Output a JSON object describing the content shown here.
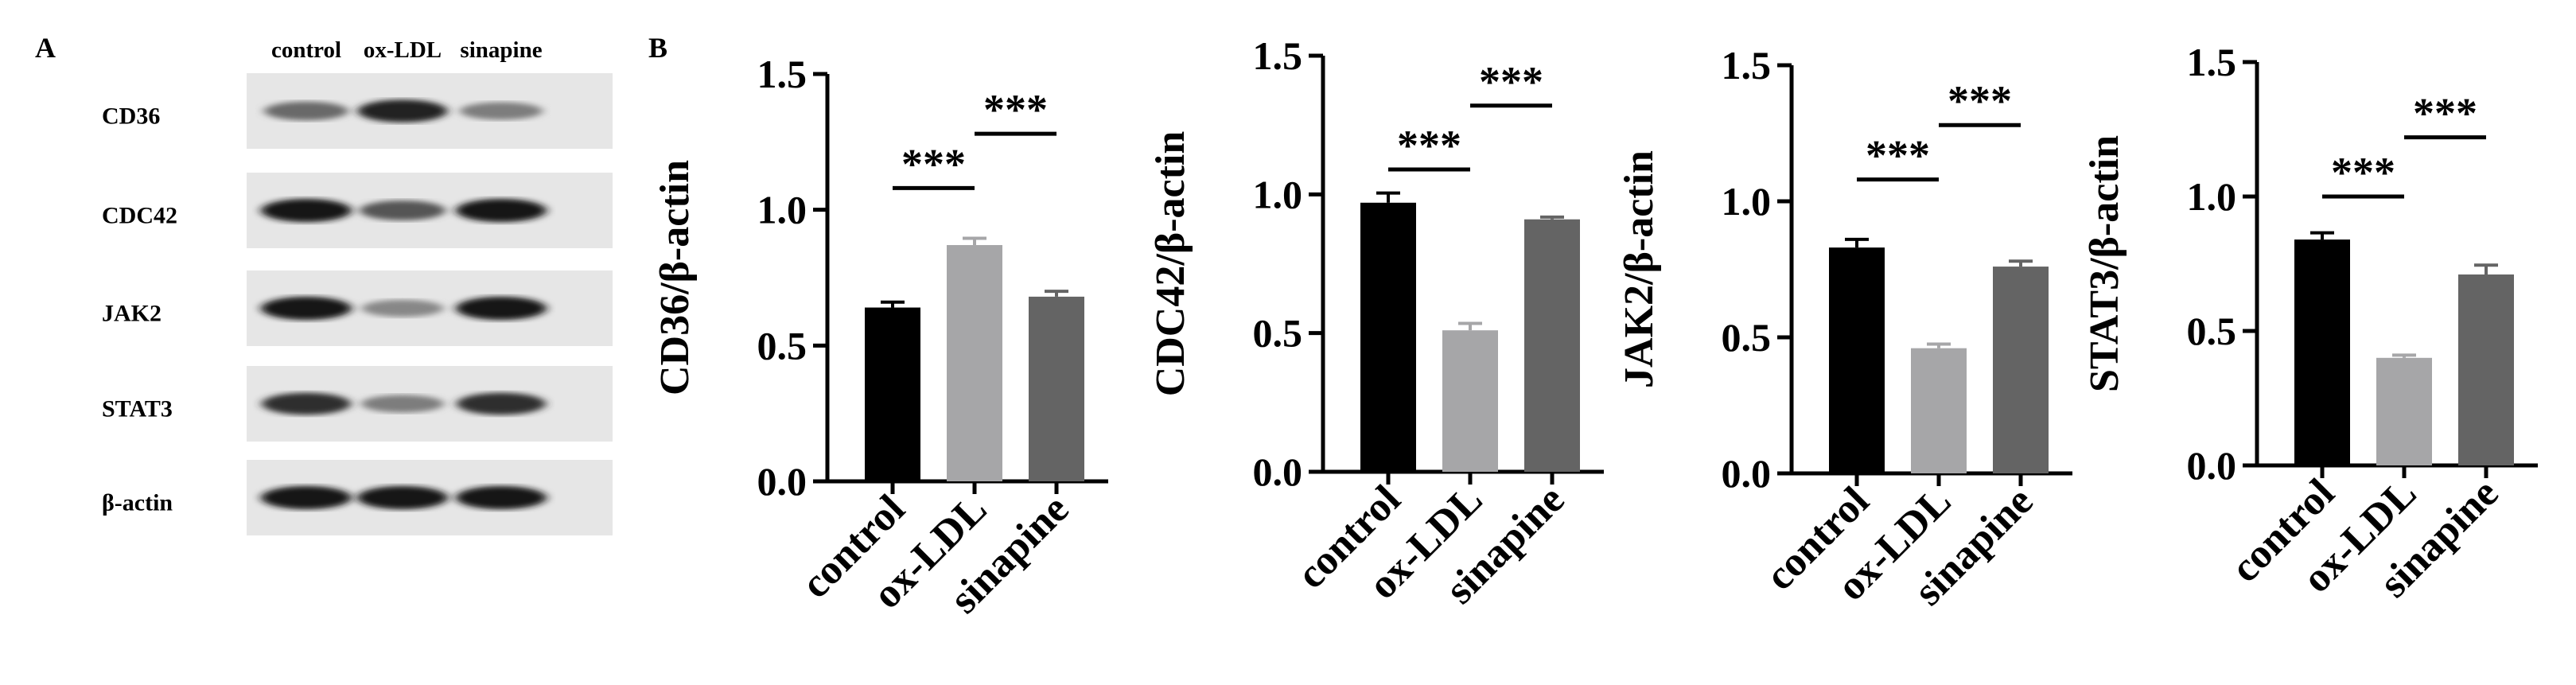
{
  "panel_a": {
    "letter": "A",
    "lanes": [
      "control",
      "ox-LDL",
      "sinapine"
    ],
    "blots": [
      {
        "protein": "CD36",
        "intensities": [
          0.55,
          0.9,
          0.45
        ]
      },
      {
        "protein": "CDC42",
        "intensities": [
          0.95,
          0.65,
          0.95
        ]
      },
      {
        "protein": "JAK2",
        "intensities": [
          0.95,
          0.4,
          0.95
        ]
      },
      {
        "protein": "STAT3",
        "intensities": [
          0.85,
          0.45,
          0.85
        ]
      },
      {
        "protein": "β-actin",
        "intensities": [
          0.95,
          0.95,
          0.95
        ]
      }
    ]
  },
  "panel_b": {
    "letter": "B"
  },
  "colors": {
    "control": "#000000",
    "ox-LDL": "#a6a6a8",
    "sinapine": "#646464"
  },
  "chart_data": [
    {
      "type": "bar",
      "ylabel": "CD36/β-actin",
      "categories": [
        "control",
        "ox-LDL",
        "sinapine"
      ],
      "values": [
        0.64,
        0.87,
        0.68
      ],
      "errors": [
        0.02,
        0.025,
        0.02
      ],
      "ylim": [
        0,
        1.5
      ],
      "yticks": [
        "0.0",
        "0.5",
        "1.0",
        "1.5"
      ],
      "significance": [
        {
          "label": "***",
          "from": "control",
          "to": "ox-LDL",
          "y": 1.08
        },
        {
          "label": "***",
          "from": "ox-LDL",
          "to": "sinapine",
          "y": 1.28
        }
      ]
    },
    {
      "type": "bar",
      "ylabel": "CDC42/β-actin",
      "categories": [
        "control",
        "ox-LDL",
        "sinapine"
      ],
      "values": [
        0.97,
        0.51,
        0.91
      ],
      "errors": [
        0.035,
        0.025,
        0.008
      ],
      "ylim": [
        0,
        1.5
      ],
      "yticks": [
        "0.0",
        "0.5",
        "1.0",
        "1.5"
      ],
      "significance": [
        {
          "label": "***",
          "from": "control",
          "to": "ox-LDL",
          "y": 1.09
        },
        {
          "label": "***",
          "from": "ox-LDL",
          "to": "sinapine",
          "y": 1.32
        }
      ]
    },
    {
      "type": "bar",
      "ylabel": "JAK2/β-actin",
      "categories": [
        "control",
        "ox-LDL",
        "sinapine"
      ],
      "values": [
        0.83,
        0.46,
        0.76
      ],
      "errors": [
        0.03,
        0.015,
        0.02
      ],
      "ylim": [
        0,
        1.5
      ],
      "yticks": [
        "0.0",
        "0.5",
        "1.0",
        "1.5"
      ],
      "significance": [
        {
          "label": "***",
          "from": "control",
          "to": "ox-LDL",
          "y": 1.08
        },
        {
          "label": "***",
          "from": "ox-LDL",
          "to": "sinapine",
          "y": 1.28
        }
      ]
    },
    {
      "type": "bar",
      "ylabel": "STAT3/β-actin",
      "categories": [
        "control",
        "ox-LDL",
        "sinapine"
      ],
      "values": [
        0.84,
        0.4,
        0.71
      ],
      "errors": [
        0.025,
        0.01,
        0.035
      ],
      "ylim": [
        0,
        1.5
      ],
      "yticks": [
        "0.0",
        "0.5",
        "1.0",
        "1.5"
      ],
      "significance": [
        {
          "label": "***",
          "from": "control",
          "to": "ox-LDL",
          "y": 1.0
        },
        {
          "label": "***",
          "from": "ox-LDL",
          "to": "sinapine",
          "y": 1.22
        }
      ]
    }
  ]
}
